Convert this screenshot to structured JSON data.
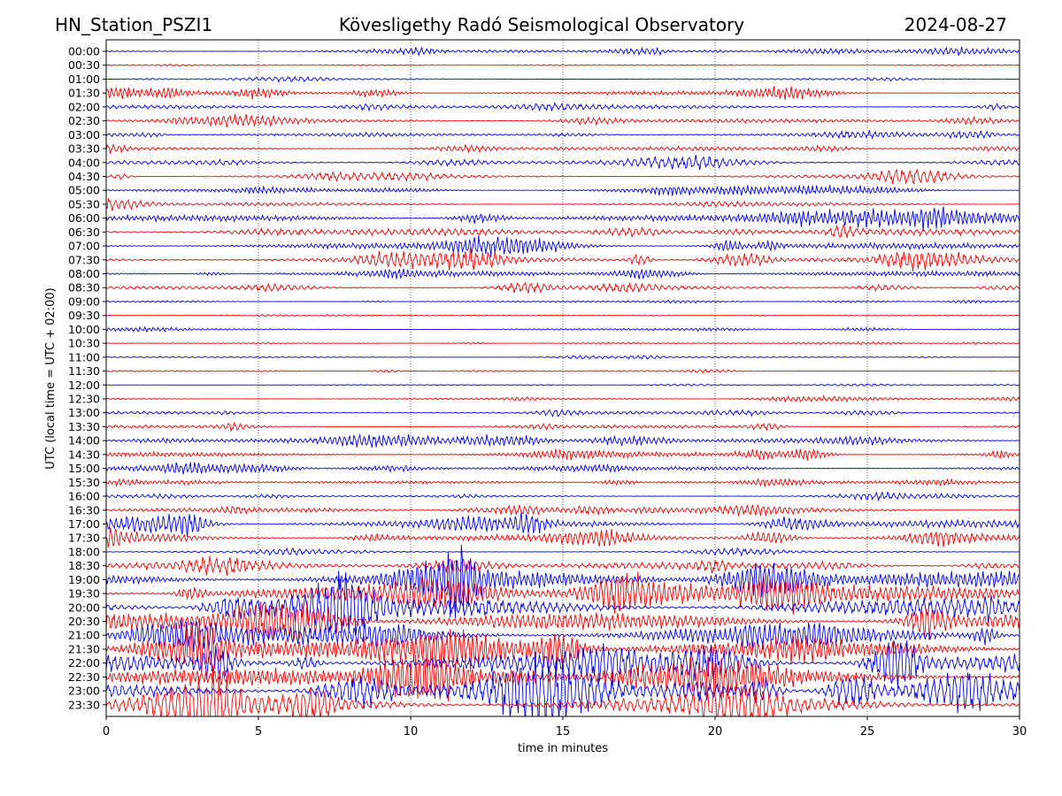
{
  "header": {
    "station": "HN_Station_PSZI1",
    "observatory": "Kövesligethy Radó Seismological Observatory",
    "date": "2024-08-27"
  },
  "chart_data": {
    "type": "line",
    "xlabel": "time in minutes",
    "ylabel": "UTC (local time = UTC + 02:00)",
    "xlim": [
      0,
      30
    ],
    "xticks": [
      0,
      5,
      10,
      15,
      20,
      25,
      30
    ],
    "vertical_gridlines": [
      5,
      10,
      15,
      20,
      25
    ],
    "grid": "dotted vertical lines",
    "row_labels": [
      "00:00",
      "00:30",
      "01:00",
      "01:30",
      "02:00",
      "02:30",
      "03:00",
      "03:30",
      "04:00",
      "04:30",
      "05:00",
      "05:30",
      "06:00",
      "06:30",
      "07:00",
      "07:30",
      "08:00",
      "08:30",
      "09:00",
      "09:30",
      "10:00",
      "10:30",
      "11:00",
      "11:30",
      "12:00",
      "12:30",
      "13:00",
      "13:30",
      "14:00",
      "14:30",
      "15:00",
      "15:30",
      "16:00",
      "16:30",
      "17:00",
      "17:30",
      "18:00",
      "18:30",
      "19:00",
      "19:30",
      "20:00",
      "20:30",
      "21:00",
      "21:30",
      "22:00",
      "22:30",
      "23:00",
      "23:30"
    ],
    "row_colors": [
      "#0000ff",
      "#ff0000"
    ],
    "activity_levels": [
      0.6,
      0.15,
      0.35,
      0.8,
      0.8,
      0.85,
      0.6,
      0.7,
      0.8,
      0.7,
      0.7,
      0.75,
      1.3,
      1.4,
      1.3,
      1.3,
      1.1,
      0.7,
      0.3,
      0.15,
      0.4,
      0.2,
      0.3,
      0.3,
      0.15,
      0.4,
      0.6,
      0.7,
      0.9,
      1.0,
      0.8,
      0.6,
      0.4,
      1.0,
      1.6,
      1.4,
      0.5,
      1.5,
      3.5,
      3.5,
      3.8,
      3.8,
      3.8,
      3.8,
      3.8,
      3.8,
      3.5,
      3.8
    ]
  }
}
